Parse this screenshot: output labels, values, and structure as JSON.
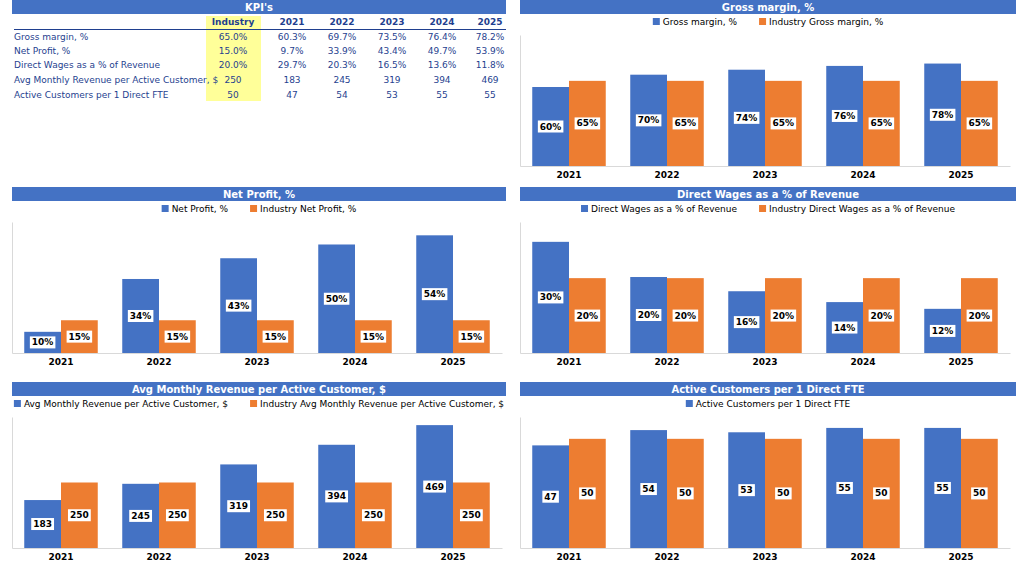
{
  "table": {
    "title": "KPI's",
    "columns": [
      "Industry",
      "2021",
      "2022",
      "2023",
      "2024",
      "2025"
    ],
    "rows": [
      {
        "label": "Gross margin, %",
        "cells": [
          "65.0%",
          "60.3%",
          "69.7%",
          "73.5%",
          "76.4%",
          "78.2%"
        ]
      },
      {
        "label": "Net Profit, %",
        "cells": [
          "15.0%",
          "9.7%",
          "33.9%",
          "43.4%",
          "49.7%",
          "53.9%"
        ]
      },
      {
        "label": "Direct Wages as a % of Revenue",
        "cells": [
          "20.0%",
          "29.7%",
          "20.3%",
          "16.5%",
          "13.6%",
          "11.8%"
        ]
      },
      {
        "label": "Avg Monthly Revenue per Active Customer, $",
        "cells": [
          "250",
          "183",
          "245",
          "319",
          "394",
          "469"
        ]
      },
      {
        "label": "Active Customers per 1 Direct FTE",
        "cells": [
          "50",
          "47",
          "54",
          "53",
          "55",
          "55"
        ]
      }
    ]
  },
  "chart_data": [
    {
      "type": "bar",
      "title": "Gross margin, %",
      "categories": [
        "2021",
        "2022",
        "2023",
        "2024",
        "2025"
      ],
      "series": [
        {
          "name": "Gross margin, %",
          "color": "#4472c4",
          "values": [
            60.3,
            69.7,
            73.5,
            76.4,
            78.2
          ],
          "value_labels": [
            "60%",
            "70%",
            "74%",
            "76%",
            "78%"
          ]
        },
        {
          "name": "Industry Gross margin, %",
          "color": "#ed7d31",
          "values": [
            65,
            65,
            65,
            65,
            65
          ],
          "value_labels": [
            "65%",
            "65%",
            "65%",
            "65%",
            "65%"
          ]
        }
      ],
      "ylim": [
        0,
        100
      ],
      "grid": false,
      "legend": "top",
      "data_labels": true,
      "tick_labels": "x"
    },
    {
      "type": "bar",
      "title": "Net Profit, %",
      "categories": [
        "2021",
        "2022",
        "2023",
        "2024",
        "2025"
      ],
      "series": [
        {
          "name": "Net Profit, %",
          "color": "#4472c4",
          "values": [
            9.7,
            33.9,
            43.4,
            49.7,
            53.9
          ],
          "value_labels": [
            "10%",
            "34%",
            "43%",
            "50%",
            "54%"
          ]
        },
        {
          "name": "Industry Net Profit, %",
          "color": "#ed7d31",
          "values": [
            15,
            15,
            15,
            15,
            15
          ],
          "value_labels": [
            "15%",
            "15%",
            "15%",
            "15%",
            "15%"
          ]
        }
      ],
      "ylim": [
        0,
        60
      ],
      "grid": false,
      "legend": "top",
      "data_labels": true,
      "tick_labels": "x"
    },
    {
      "type": "bar",
      "title": "Direct Wages as a % of Revenue",
      "categories": [
        "2021",
        "2022",
        "2023",
        "2024",
        "2025"
      ],
      "series": [
        {
          "name": "Direct Wages as a % of Revenue",
          "color": "#4472c4",
          "values": [
            29.7,
            20.3,
            16.5,
            13.6,
            11.8
          ],
          "value_labels": [
            "30%",
            "20%",
            "16%",
            "14%",
            "12%"
          ]
        },
        {
          "name": "Industry Direct Wages as a % of Revenue",
          "color": "#ed7d31",
          "values": [
            20,
            20,
            20,
            20,
            20
          ],
          "value_labels": [
            "20%",
            "20%",
            "20%",
            "20%",
            "20%"
          ]
        }
      ],
      "ylim": [
        0,
        35
      ],
      "grid": false,
      "legend": "top",
      "data_labels": true,
      "tick_labels": "x"
    },
    {
      "type": "bar",
      "title": "Avg Monthly Revenue per Active Customer, $",
      "categories": [
        "2021",
        "2022",
        "2023",
        "2024",
        "2025"
      ],
      "series": [
        {
          "name": "Avg Monthly Revenue per Active Customer, $",
          "color": "#4472c4",
          "values": [
            183,
            245,
            319,
            394,
            469
          ]
        },
        {
          "name": "Industry Avg Monthly Revenue per Active Customer, $",
          "color": "#ed7d31",
          "values": [
            250,
            250,
            250,
            250,
            250
          ]
        }
      ],
      "ylim": [
        0,
        500
      ],
      "grid": false,
      "legend": "top",
      "data_labels": true,
      "tick_labels": "x"
    },
    {
      "type": "bar",
      "title": "Active Customers per 1 Direct FTE",
      "categories": [
        "2021",
        "2022",
        "2023",
        "2024",
        "2025"
      ],
      "series": [
        {
          "name": "Active Customers per 1 Direct FTE",
          "color": "#4472c4",
          "values": [
            47,
            54,
            53,
            55,
            55
          ]
        },
        {
          "color": "#ed7d31",
          "values": [
            50,
            50,
            50,
            50,
            50
          ]
        }
      ],
      "ylim": [
        0,
        60
      ],
      "grid": false,
      "legend": "top",
      "data_labels": true,
      "tick_labels": "x"
    }
  ]
}
